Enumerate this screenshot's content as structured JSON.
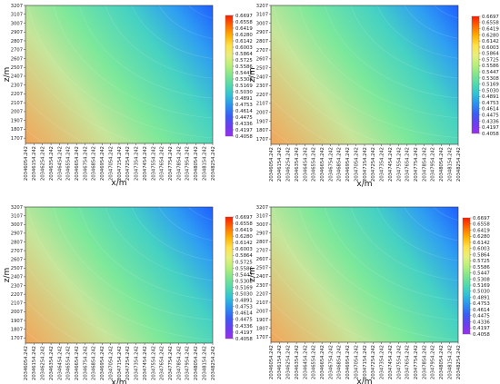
{
  "chart_data": [
    {
      "type": "heatmap",
      "xlabel": "x/m",
      "ylabel": "z/m",
      "x_ticks": [
        "20346054.242",
        "20346154.242",
        "20346254.242",
        "20346354.242",
        "20346454.242",
        "20346554.242",
        "20346654.242",
        "20346754.242",
        "20346854.242",
        "20346954.242",
        "20347054.242",
        "20347154.242",
        "20347254.242",
        "20347354.242",
        "20347454.242",
        "20347554.242",
        "20347654.242",
        "20347754.242",
        "20347854.242",
        "20347954.242",
        "20348054.242",
        "20348154.242",
        "20348254.242"
      ],
      "y_ticks": [
        "1707",
        "1807",
        "1907",
        "2007",
        "2107",
        "2207",
        "2307",
        "2407",
        "2507",
        "2607",
        "2707",
        "2807",
        "2907",
        "3007",
        "3107",
        "3207"
      ],
      "ylim": [
        1647,
        3207
      ],
      "colorbar_ticks": [
        "0.6697",
        "0.6558",
        "0.6419",
        "0.6280",
        "0.6142",
        "0.6003",
        "0.5864",
        "0.5725",
        "0.5586",
        "0.5447",
        "0.5308",
        "0.5169",
        "0.5030",
        "0.4891",
        "0.4753",
        "0.4614",
        "0.4475",
        "0.4336",
        "0.4197",
        "0.4058"
      ],
      "value_range": [
        0.4058,
        0.6697
      ]
    },
    {
      "type": "heatmap",
      "xlabel": "x/m",
      "ylabel": "z/m",
      "x_ticks": [
        "20346054.242",
        "20346154.242",
        "20346254.242",
        "20346354.242",
        "20346454.242",
        "20346554.242",
        "20346654.242",
        "20346754.242",
        "20346854.242",
        "20346954.242",
        "20347054.242",
        "20347154.242",
        "20347254.242",
        "20347354.242",
        "20347454.242",
        "20347554.242",
        "20347654.242",
        "20347754.242",
        "20347854.242",
        "20347954.242",
        "20348054.242",
        "20348154.242",
        "20348254.242"
      ],
      "y_ticks": [
        "1707",
        "1807",
        "1907",
        "2007",
        "2107",
        "2207",
        "2307",
        "2407",
        "2507",
        "2607",
        "2707",
        "2807",
        "2907",
        "3007",
        "3107",
        "3207"
      ],
      "ylim": [
        1647,
        3207
      ],
      "colorbar_ticks": [
        "0.6697",
        "0.6558",
        "0.6419",
        "0.6280",
        "0.6142",
        "0.6003",
        "0.5864",
        "0.5725",
        "0.5586",
        "0.5447",
        "0.5308",
        "0.5169",
        "0.5030",
        "0.4891",
        "0.4753",
        "0.4614",
        "0.4475",
        "0.4336",
        "0.4197",
        "0.4058"
      ],
      "value_range": [
        0.4058,
        0.6697
      ]
    },
    {
      "type": "heatmap",
      "xlabel": "x/m",
      "ylabel": "z/m",
      "x_ticks": [
        "20346054.242",
        "20346154.242",
        "20346254.242",
        "20346354.242",
        "20346454.242",
        "20346554.242",
        "20346654.242",
        "20346754.242",
        "20346854.242",
        "20346954.242",
        "20347054.242",
        "20347154.242",
        "20347254.242",
        "20347354.242",
        "20347454.242",
        "20347554.242",
        "20347654.242",
        "20347754.242",
        "20347854.242",
        "20347954.242",
        "20348054.242",
        "20348154.242",
        "20348254.242"
      ],
      "y_ticks": [
        "1707",
        "1807",
        "1907",
        "2007",
        "2107",
        "2207",
        "2307",
        "2407",
        "2507",
        "2607",
        "2707",
        "2807",
        "2907",
        "3007",
        "3107",
        "3207"
      ],
      "ylim": [
        1647,
        3207
      ],
      "colorbar_ticks": [
        "0.6697",
        "0.6558",
        "0.6419",
        "0.6280",
        "0.6142",
        "0.6003",
        "0.5864",
        "0.5725",
        "0.5586",
        "0.5447",
        "0.5308",
        "0.5169",
        "0.5030",
        "0.4891",
        "0.4753",
        "0.4614",
        "0.4475",
        "0.4336",
        "0.4197",
        "0.4058"
      ],
      "value_range": [
        0.4058,
        0.6697
      ]
    },
    {
      "type": "heatmap",
      "xlabel": "x/m",
      "ylabel": "z/m",
      "x_ticks": [
        "20346054.242",
        "20346154.242",
        "20346254.242",
        "20346354.242",
        "20346454.242",
        "20346554.242",
        "20346654.242",
        "20346754.242",
        "20346854.242",
        "20346954.242",
        "20347054.242",
        "20347154.242",
        "20347254.242",
        "20347354.242",
        "20347454.242",
        "20347554.242",
        "20347654.242",
        "20347754.242",
        "20347854.242",
        "20347954.242",
        "20348054.242",
        "20348154.242",
        "20348254.242"
      ],
      "y_ticks": [
        "1707",
        "1807",
        "1907",
        "2007",
        "2107",
        "2207",
        "2307",
        "2407",
        "2507",
        "2607",
        "2707",
        "2807",
        "2907",
        "3007",
        "3107",
        "3207"
      ],
      "ylim": [
        1647,
        3207
      ],
      "colorbar_ticks": [
        "0.6697",
        "0.6558",
        "0.6419",
        "0.6280",
        "0.6142",
        "0.6003",
        "0.5864",
        "0.5725",
        "0.5586",
        "0.5447",
        "0.5308",
        "0.5169",
        "0.5030",
        "0.4891",
        "0.4753",
        "0.4614",
        "0.4475",
        "0.4336",
        "0.4197",
        "0.4058"
      ],
      "value_range": [
        0.4058,
        0.6697
      ]
    }
  ],
  "colors": {
    "low": "#1f5fff",
    "mid": "#7de89a",
    "high": "#f2a65a",
    "colorbar_stops": [
      "#ff1a00",
      "#ff6a00",
      "#ffb000",
      "#ffe24a",
      "#e7ef7c",
      "#b7f07a",
      "#7fe58e",
      "#4fd8b0",
      "#2ec0d8",
      "#2a8ff0",
      "#3a5cf5",
      "#6a3ef0",
      "#9a2ff0"
    ]
  }
}
